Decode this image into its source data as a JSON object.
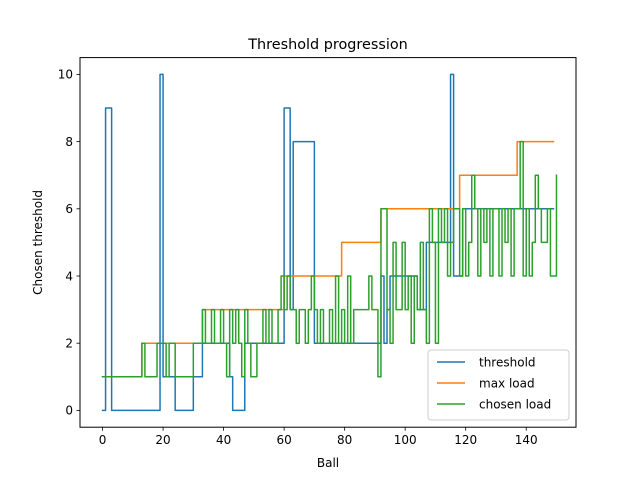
{
  "chart_data": {
    "type": "line",
    "title": "Threshold progression",
    "xlabel": "Ball",
    "ylabel": "Chosen threshold",
    "xlim": [
      -7.45,
      156.45
    ],
    "ylim": [
      -0.5,
      10.5
    ],
    "xticks": [
      0,
      20,
      40,
      60,
      80,
      100,
      120,
      140
    ],
    "yticks": [
      0,
      2,
      4,
      6,
      8,
      10
    ],
    "grid": false,
    "legend_position": "lower right",
    "drawstyle": "steps-post",
    "series": [
      {
        "name": "threshold",
        "color": "#1f77b4",
        "values": [
          0,
          9,
          9,
          0,
          0,
          0,
          0,
          0,
          0,
          0,
          0,
          0,
          0,
          0,
          0,
          0,
          0,
          0,
          0,
          10,
          1,
          1,
          1,
          1,
          0,
          0,
          0,
          0,
          0,
          0,
          1,
          1,
          1,
          2,
          2,
          2,
          2,
          2,
          2,
          2,
          2,
          2,
          1,
          0,
          0,
          0,
          0,
          2,
          2,
          2,
          2,
          2,
          2,
          2,
          2,
          2,
          2,
          2,
          2,
          2,
          9,
          9,
          3,
          8,
          8,
          8,
          8,
          8,
          8,
          8,
          2,
          2,
          2,
          2,
          2,
          2,
          2,
          2,
          2,
          2,
          2,
          2,
          2,
          2,
          2,
          2,
          2,
          2,
          2,
          2,
          2,
          2,
          4,
          2,
          3,
          4,
          4,
          4,
          4,
          4,
          4,
          4,
          4,
          4,
          3,
          3,
          3,
          5,
          5,
          5,
          5,
          5,
          5,
          5,
          5,
          10,
          4,
          4,
          4,
          6,
          6,
          6,
          6,
          6,
          6,
          6,
          6,
          6,
          6,
          6,
          6,
          6,
          6,
          6,
          6,
          6,
          6,
          6,
          6,
          6,
          6,
          6,
          6,
          6,
          6,
          6,
          6,
          6,
          6,
          6
        ]
      },
      {
        "name": "max load",
        "color": "#ff7f0e",
        "values": [
          1,
          1,
          1,
          1,
          1,
          1,
          1,
          1,
          1,
          1,
          1,
          1,
          1,
          2,
          2,
          2,
          2,
          2,
          2,
          2,
          2,
          2,
          2,
          2,
          2,
          2,
          2,
          2,
          2,
          2,
          2,
          2,
          2,
          3,
          3,
          3,
          3,
          3,
          3,
          3,
          3,
          3,
          3,
          3,
          3,
          3,
          3,
          3,
          3,
          3,
          3,
          3,
          3,
          3,
          3,
          3,
          3,
          3,
          3,
          3,
          4,
          4,
          4,
          4,
          4,
          4,
          4,
          4,
          4,
          4,
          4,
          4,
          4,
          4,
          4,
          4,
          4,
          4,
          4,
          5,
          5,
          5,
          5,
          5,
          5,
          5,
          5,
          5,
          5,
          5,
          5,
          5,
          6,
          6,
          6,
          6,
          6,
          6,
          6,
          6,
          6,
          6,
          6,
          6,
          6,
          6,
          6,
          6,
          6,
          6,
          6,
          6,
          6,
          6,
          6,
          6,
          6,
          6,
          7,
          7,
          7,
          7,
          7,
          7,
          7,
          7,
          7,
          7,
          7,
          7,
          7,
          7,
          7,
          7,
          7,
          7,
          7,
          8,
          8,
          8,
          8,
          8,
          8,
          8,
          8,
          8,
          8,
          8,
          8,
          8
        ]
      },
      {
        "name": "chosen load",
        "color": "#2ca02c",
        "values": [
          1,
          1,
          1,
          1,
          1,
          1,
          1,
          1,
          1,
          1,
          1,
          1,
          1,
          2,
          1,
          1,
          1,
          1,
          2,
          2,
          2,
          1,
          2,
          2,
          1,
          1,
          1,
          1,
          1,
          1,
          2,
          2,
          2,
          3,
          2,
          2,
          3,
          2,
          2,
          3,
          2,
          1,
          3,
          2,
          3,
          2,
          1,
          3,
          2,
          1,
          1,
          2,
          2,
          3,
          2,
          3,
          2,
          2,
          3,
          4,
          3,
          4,
          3,
          3,
          2,
          3,
          3,
          2,
          3,
          4,
          3,
          2,
          3,
          2,
          2,
          3,
          2,
          4,
          2,
          3,
          2,
          4,
          2,
          3,
          3,
          3,
          3,
          3,
          4,
          3,
          3,
          1,
          6,
          6,
          3,
          2,
          5,
          3,
          3,
          5,
          3,
          4,
          2,
          4,
          3,
          5,
          3,
          2,
          6,
          5,
          2,
          6,
          5,
          6,
          4,
          5,
          6,
          6,
          4,
          6,
          4,
          5,
          7,
          6,
          4,
          6,
          5,
          6,
          4,
          6,
          6,
          4,
          6,
          5,
          6,
          4,
          6,
          6,
          8,
          4,
          6,
          4,
          5,
          7,
          6,
          5,
          5,
          6,
          4,
          4,
          7
        ]
      }
    ]
  }
}
